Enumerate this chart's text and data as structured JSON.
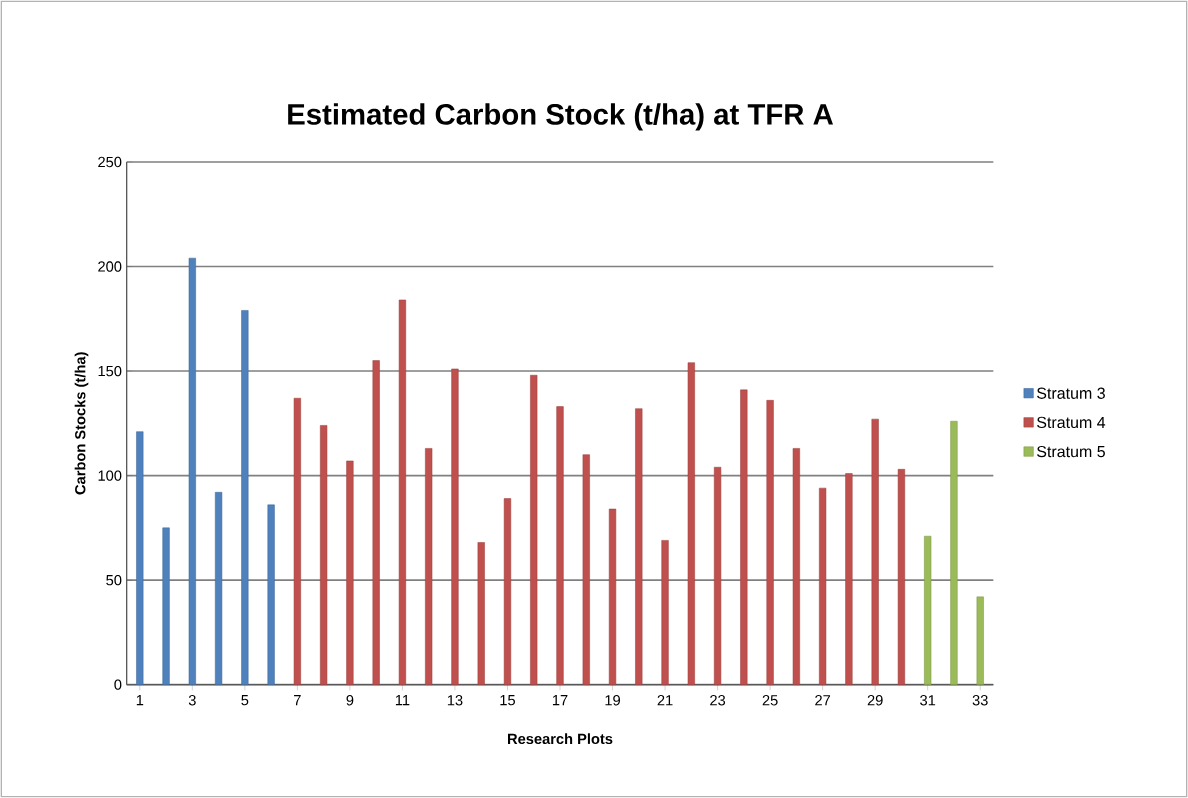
{
  "chart_data": {
    "type": "bar",
    "title": "Estimated Carbon Stock (t/ha) at TFR A",
    "xlabel": "Research Plots",
    "ylabel": "Carbon Stocks (t/ha)",
    "categories": [
      "1",
      null,
      "3",
      null,
      "5",
      null,
      "7",
      null,
      "9",
      null,
      "11",
      null,
      "13",
      null,
      "15",
      null,
      "17",
      null,
      "19",
      null,
      "21",
      null,
      "23",
      null,
      "25",
      null,
      "27",
      null,
      "29",
      null,
      "31",
      null,
      "33"
    ],
    "series": [
      {
        "name": "Stratum 3",
        "color": "#4f81bd",
        "values": [
          121,
          75,
          204,
          92,
          179,
          86,
          null,
          null,
          null,
          null,
          null,
          null,
          null,
          null,
          null,
          null,
          null,
          null,
          null,
          null,
          null,
          null,
          null,
          null,
          null,
          null,
          null,
          null,
          null,
          null,
          null,
          null,
          null
        ]
      },
      {
        "name": "Stratum 4",
        "color": "#c0504d",
        "values": [
          null,
          null,
          null,
          null,
          null,
          null,
          137,
          124,
          107,
          155,
          184,
          113,
          151,
          68,
          89,
          148,
          133,
          110,
          84,
          132,
          69,
          154,
          104,
          141,
          136,
          113,
          94,
          101,
          127,
          103,
          null,
          null,
          null
        ]
      },
      {
        "name": "Stratum 5",
        "color": "#9bbb59",
        "values": [
          null,
          null,
          null,
          null,
          null,
          null,
          null,
          null,
          null,
          null,
          null,
          null,
          null,
          null,
          null,
          null,
          null,
          null,
          null,
          null,
          null,
          null,
          null,
          null,
          null,
          null,
          null,
          null,
          null,
          null,
          71,
          126,
          42
        ]
      }
    ],
    "ylim": [
      0,
      250
    ],
    "yticks": [
      0,
      50,
      100,
      150,
      200,
      250
    ],
    "grid": "y",
    "legend": "right"
  }
}
